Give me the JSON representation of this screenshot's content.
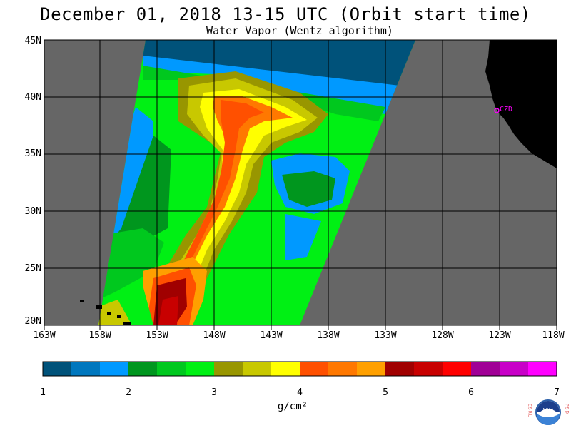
{
  "title": "December 01, 2018  13-15 UTC  (Orbit start time)",
  "subtitle": "Water Vapor (Wentz algorithm)",
  "map": {
    "lat_labels": [
      "45N",
      "40N",
      "35N",
      "30N",
      "25N",
      "20N"
    ],
    "lon_labels": [
      "163W",
      "158W",
      "153W",
      "148W",
      "143W",
      "138W",
      "133W",
      "128W",
      "123W",
      "118W"
    ],
    "place_label": "CZD",
    "colors": {
      "no_data": "#666666",
      "land": "#000000",
      "grid": "#000000",
      "place_marker": "#ff00ff"
    }
  },
  "colorbar": {
    "tick_labels": [
      "1",
      "2",
      "3",
      "4",
      "5",
      "6",
      "7"
    ],
    "units": "g/cm²",
    "colors": [
      "#00527a",
      "#0077be",
      "#0099ff",
      "#00961e",
      "#00c81e",
      "#00f014",
      "#989600",
      "#c8c800",
      "#ffff00",
      "#ff5000",
      "#ff7800",
      "#ffa000",
      "#a00000",
      "#c80000",
      "#ff0000",
      "#a00096",
      "#c800c8",
      "#ff00ff"
    ]
  },
  "logo": {
    "left_text": "ESRL",
    "right_text": "PSD",
    "center_text": "NOAA"
  }
}
